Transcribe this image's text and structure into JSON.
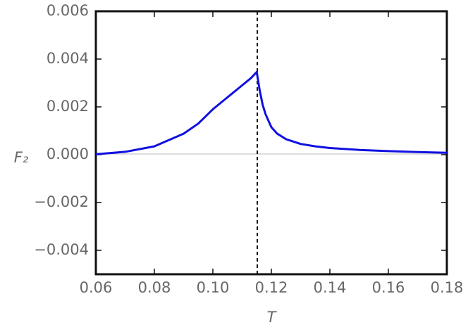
{
  "chart_data": {
    "type": "line",
    "x_label": "T",
    "y_label": "F₂",
    "x": [
      0.06,
      0.07,
      0.08,
      0.09,
      0.095,
      0.1,
      0.105,
      0.11,
      0.113,
      0.115,
      0.116,
      0.117,
      0.118,
      0.12,
      0.122,
      0.125,
      0.13,
      0.135,
      0.14,
      0.15,
      0.16,
      0.17,
      0.18
    ],
    "series": [
      {
        "name": "F2",
        "color": "#1010e0",
        "values": [
          2e-05,
          0.00012,
          0.00035,
          0.00088,
          0.0013,
          0.0019,
          0.0024,
          0.0029,
          0.0032,
          0.00346,
          0.0027,
          0.0021,
          0.0017,
          0.00115,
          0.00088,
          0.00065,
          0.00045,
          0.00035,
          0.00028,
          0.0002,
          0.00015,
          0.00011,
          8e-05
        ]
      }
    ],
    "vline": 0.1152,
    "xlim": [
      0.06,
      0.18
    ],
    "ylim": [
      -0.005,
      0.006
    ],
    "xticks": [
      {
        "value": 0.06,
        "label": "0.06"
      },
      {
        "value": 0.08,
        "label": "0.08"
      },
      {
        "value": 0.1,
        "label": "0.10"
      },
      {
        "value": 0.12,
        "label": "0.12"
      },
      {
        "value": 0.14,
        "label": "0.14"
      },
      {
        "value": 0.16,
        "label": "0.16"
      },
      {
        "value": 0.18,
        "label": "0.18"
      }
    ],
    "yticks": [
      {
        "value": -0.004,
        "label": "−0.004"
      },
      {
        "value": -0.002,
        "label": "−0.002"
      },
      {
        "value": 0,
        "label": "0.000"
      },
      {
        "value": 0.002,
        "label": "0.002"
      },
      {
        "value": 0.004,
        "label": "0.004"
      },
      {
        "value": 0.006,
        "label": "0.006"
      }
    ]
  }
}
